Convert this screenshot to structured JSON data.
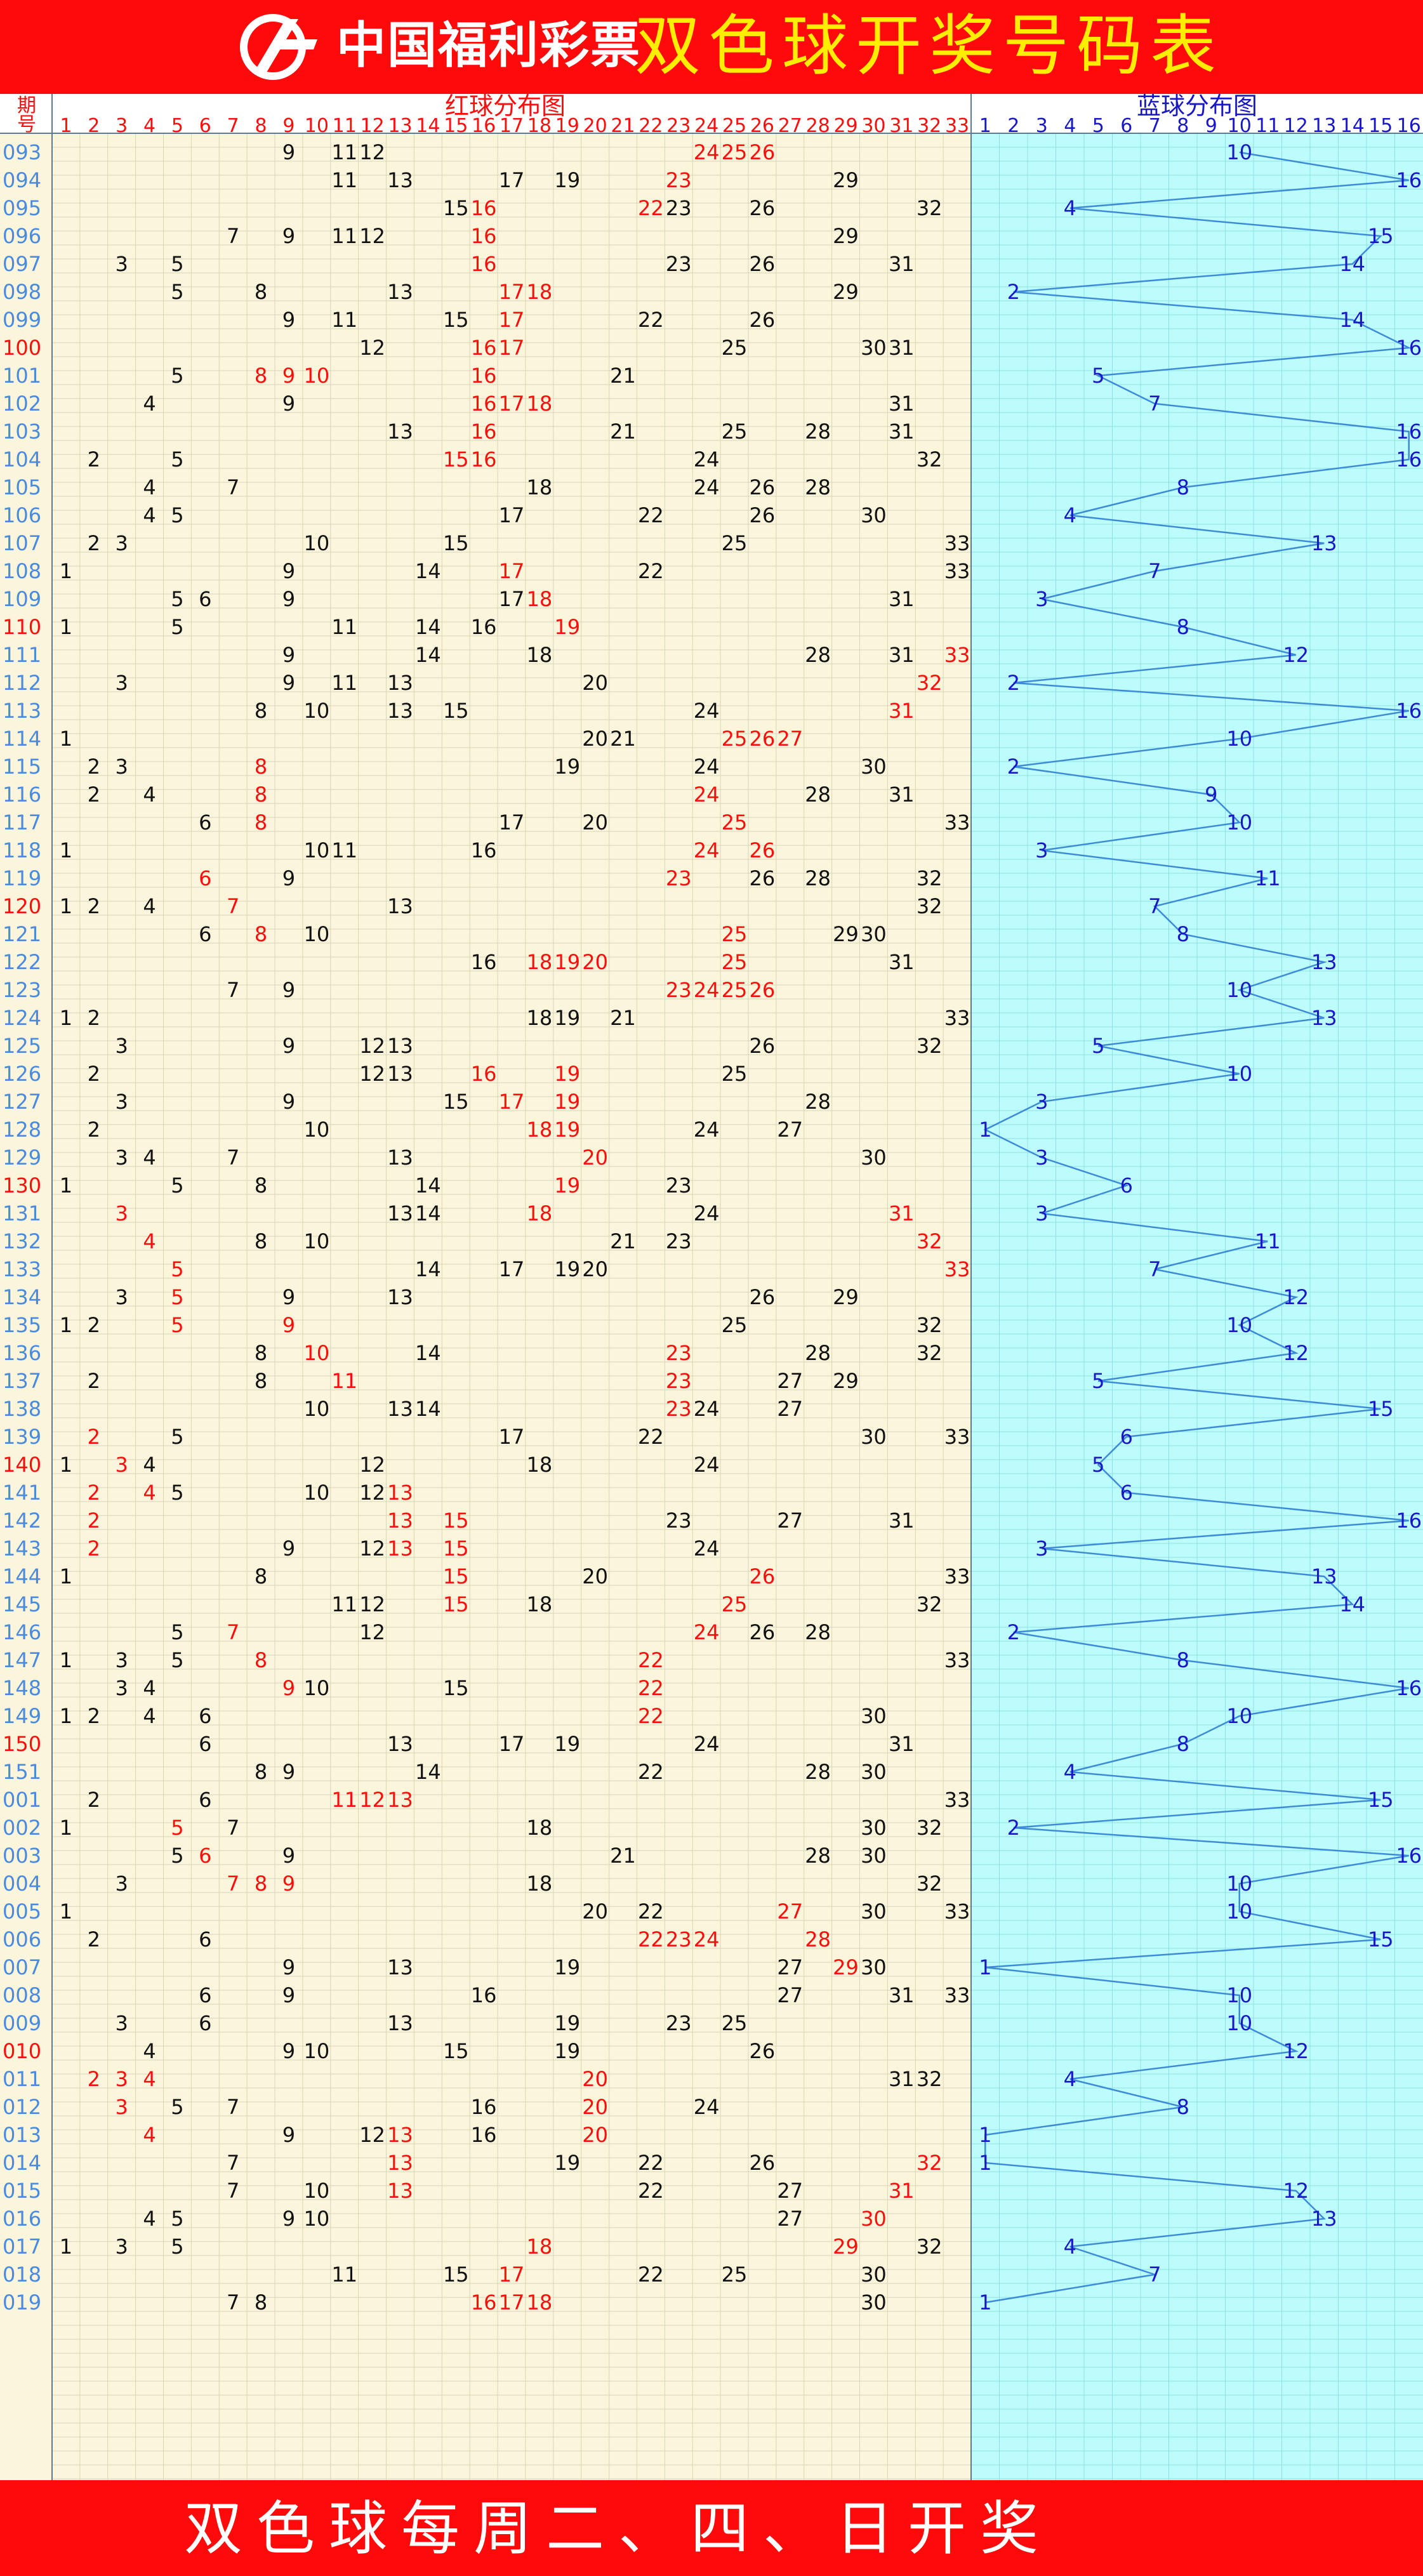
{
  "header": {
    "brand": "中国福利彩票",
    "title": "双色球开奖号码表"
  },
  "table": {
    "period_header": "期号",
    "red_header": "红球分布图",
    "blue_header": "蓝球分布图"
  },
  "footer": {
    "text": "双色球每周二、四、日开奖"
  },
  "colors": {
    "background": "#ff0a0a",
    "red_area": "#fbf5dc",
    "blue_area": "#bdfcfd",
    "red_number": "#ff0d0d",
    "black_number": "#111111",
    "blue_number": "#1818c8",
    "period": "#4a8ae0",
    "grid": "#d6d6b8",
    "blue_line": "#3c8ad8"
  },
  "draws": [
    {
      "p": "093",
      "r": [
        9,
        11,
        12,
        24,
        25,
        26
      ],
      "rr": [
        24,
        25,
        26
      ],
      "b": 10
    },
    {
      "p": "094",
      "r": [
        11,
        13,
        17,
        19,
        23,
        29
      ],
      "rr": [
        23
      ],
      "b": 16
    },
    {
      "p": "095",
      "r": [
        15,
        16,
        22,
        23,
        26,
        32
      ],
      "rr": [
        16,
        22
      ],
      "b": 4
    },
    {
      "p": "096",
      "r": [
        7,
        9,
        11,
        12,
        16,
        29
      ],
      "rr": [
        16
      ],
      "b": 15
    },
    {
      "p": "097",
      "r": [
        3,
        5,
        16,
        23,
        26,
        31
      ],
      "rr": [
        16
      ],
      "b": 14
    },
    {
      "p": "098",
      "r": [
        5,
        8,
        13,
        17,
        18,
        29
      ],
      "rr": [
        17,
        18
      ],
      "b": 2
    },
    {
      "p": "099",
      "r": [
        9,
        11,
        15,
        17,
        22,
        26
      ],
      "rr": [
        17
      ],
      "b": 14
    },
    {
      "p": "100",
      "r": [
        12,
        16,
        17,
        25,
        30,
        31
      ],
      "rr": [
        16,
        17
      ],
      "b": 16
    },
    {
      "p": "101",
      "r": [
        5,
        8,
        9,
        10,
        16,
        21
      ],
      "rr": [
        8,
        9,
        10,
        16
      ],
      "b": 5
    },
    {
      "p": "102",
      "r": [
        4,
        9,
        16,
        17,
        18,
        31
      ],
      "rr": [
        16,
        17,
        18
      ],
      "b": 7
    },
    {
      "p": "103",
      "r": [
        13,
        16,
        21,
        25,
        28,
        31
      ],
      "rr": [
        16
      ],
      "b": 16
    },
    {
      "p": "104",
      "r": [
        2,
        5,
        15,
        16,
        24,
        32
      ],
      "rr": [
        15,
        16
      ],
      "b": 16
    },
    {
      "p": "105",
      "r": [
        4,
        7,
        18,
        24,
        26,
        28
      ],
      "rr": [],
      "b": 8
    },
    {
      "p": "106",
      "r": [
        4,
        5,
        17,
        22,
        26,
        30
      ],
      "rr": [],
      "b": 4
    },
    {
      "p": "107",
      "r": [
        2,
        3,
        10,
        15,
        25,
        33
      ],
      "rr": [],
      "b": 13
    },
    {
      "p": "108",
      "r": [
        1,
        9,
        14,
        17,
        22,
        33
      ],
      "rr": [
        17
      ],
      "b": 7
    },
    {
      "p": "109",
      "r": [
        5,
        6,
        9,
        17,
        18,
        31
      ],
      "rr": [
        18
      ],
      "b": 3
    },
    {
      "p": "110",
      "r": [
        1,
        5,
        11,
        14,
        16,
        19
      ],
      "rr": [
        19
      ],
      "b": 8
    },
    {
      "p": "111",
      "r": [
        9,
        14,
        18,
        28,
        31,
        33
      ],
      "rr": [
        33
      ],
      "b": 12
    },
    {
      "p": "112",
      "r": [
        3,
        9,
        11,
        13,
        20,
        32
      ],
      "rr": [
        32
      ],
      "b": 2
    },
    {
      "p": "113",
      "r": [
        8,
        10,
        13,
        15,
        24,
        31
      ],
      "rr": [
        31
      ],
      "b": 16
    },
    {
      "p": "114",
      "r": [
        1,
        20,
        21,
        25,
        26,
        27
      ],
      "rr": [
        25,
        26,
        27
      ],
      "b": 10
    },
    {
      "p": "115",
      "r": [
        2,
        3,
        8,
        19,
        24,
        30
      ],
      "rr": [
        8
      ],
      "b": 2
    },
    {
      "p": "116",
      "r": [
        2,
        4,
        8,
        24,
        28,
        31
      ],
      "rr": [
        8,
        24
      ],
      "b": 9
    },
    {
      "p": "117",
      "r": [
        6,
        8,
        17,
        20,
        25,
        33
      ],
      "rr": [
        8,
        25
      ],
      "b": 10
    },
    {
      "p": "118",
      "r": [
        1,
        10,
        11,
        16,
        24,
        26
      ],
      "rr": [
        24,
        26
      ],
      "b": 3
    },
    {
      "p": "119",
      "r": [
        6,
        9,
        23,
        26,
        28,
        32
      ],
      "rr": [
        6,
        23
      ],
      "b": 11
    },
    {
      "p": "120",
      "r": [
        1,
        2,
        4,
        7,
        13,
        32
      ],
      "rr": [
        7
      ],
      "b": 7
    },
    {
      "p": "121",
      "r": [
        6,
        8,
        10,
        25,
        29,
        30
      ],
      "rr": [
        8,
        25
      ],
      "b": 8
    },
    {
      "p": "122",
      "r": [
        16,
        18,
        19,
        20,
        25,
        31
      ],
      "rr": [
        18,
        19,
        20,
        25
      ],
      "b": 13
    },
    {
      "p": "123",
      "r": [
        7,
        9,
        23,
        24,
        25,
        26
      ],
      "rr": [
        23,
        24,
        25,
        26
      ],
      "b": 10
    },
    {
      "p": "124",
      "r": [
        1,
        2,
        18,
        19,
        21,
        33
      ],
      "rr": [],
      "b": 13
    },
    {
      "p": "125",
      "r": [
        3,
        9,
        12,
        13,
        26,
        32
      ],
      "rr": [],
      "b": 5
    },
    {
      "p": "126",
      "r": [
        2,
        12,
        13,
        16,
        19,
        25
      ],
      "rr": [
        16,
        19
      ],
      "b": 10
    },
    {
      "p": "127",
      "r": [
        3,
        9,
        15,
        17,
        19,
        28
      ],
      "rr": [
        17,
        19
      ],
      "b": 3
    },
    {
      "p": "128",
      "r": [
        2,
        10,
        18,
        19,
        24,
        27
      ],
      "rr": [
        18,
        19
      ],
      "b": 1
    },
    {
      "p": "129",
      "r": [
        3,
        4,
        7,
        13,
        20,
        30
      ],
      "rr": [
        20
      ],
      "b": 3
    },
    {
      "p": "130",
      "r": [
        1,
        5,
        8,
        14,
        19,
        23
      ],
      "rr": [
        19
      ],
      "b": 6
    },
    {
      "p": "131",
      "r": [
        3,
        13,
        14,
        18,
        24,
        31
      ],
      "rr": [
        3,
        18,
        31
      ],
      "b": 3
    },
    {
      "p": "132",
      "r": [
        4,
        8,
        10,
        21,
        23,
        32
      ],
      "rr": [
        4,
        32
      ],
      "b": 11
    },
    {
      "p": "133",
      "r": [
        5,
        14,
        17,
        19,
        20,
        33
      ],
      "rr": [
        5,
        33
      ],
      "b": 7
    },
    {
      "p": "134",
      "r": [
        3,
        5,
        9,
        13,
        26,
        29
      ],
      "rr": [
        5
      ],
      "b": 12
    },
    {
      "p": "135",
      "r": [
        1,
        2,
        5,
        9,
        25,
        32
      ],
      "rr": [
        5,
        9
      ],
      "b": 10
    },
    {
      "p": "136",
      "r": [
        8,
        10,
        14,
        23,
        28,
        32
      ],
      "rr": [
        10,
        23
      ],
      "b": 12
    },
    {
      "p": "137",
      "r": [
        2,
        8,
        11,
        23,
        27,
        29
      ],
      "rr": [
        11,
        23
      ],
      "b": 5
    },
    {
      "p": "138",
      "r": [
        10,
        13,
        14,
        23,
        24,
        27
      ],
      "rr": [
        23
      ],
      "b": 15
    },
    {
      "p": "139",
      "r": [
        2,
        5,
        17,
        22,
        30,
        33
      ],
      "rr": [
        2
      ],
      "b": 6
    },
    {
      "p": "140",
      "r": [
        1,
        3,
        4,
        12,
        18,
        24
      ],
      "rr": [
        3
      ],
      "b": 5
    },
    {
      "p": "141",
      "r": [
        2,
        4,
        5,
        10,
        12,
        13
      ],
      "rr": [
        2,
        4,
        13
      ],
      "b": 6
    },
    {
      "p": "142",
      "r": [
        2,
        13,
        15,
        23,
        27,
        31
      ],
      "rr": [
        2,
        13,
        15
      ],
      "b": 16
    },
    {
      "p": "143",
      "r": [
        2,
        9,
        12,
        13,
        15,
        24
      ],
      "rr": [
        2,
        13,
        15
      ],
      "b": 3
    },
    {
      "p": "144",
      "r": [
        1,
        8,
        15,
        20,
        26,
        33
      ],
      "rr": [
        15,
        26
      ],
      "b": 13
    },
    {
      "p": "145",
      "r": [
        11,
        12,
        15,
        18,
        25,
        32
      ],
      "rr": [
        15,
        25
      ],
      "b": 14
    },
    {
      "p": "146",
      "r": [
        5,
        7,
        12,
        24,
        26,
        28
      ],
      "rr": [
        7,
        24
      ],
      "b": 2
    },
    {
      "p": "147",
      "r": [
        1,
        3,
        5,
        8,
        22,
        33
      ],
      "rr": [
        8,
        22
      ],
      "b": 8
    },
    {
      "p": "148",
      "r": [
        3,
        4,
        9,
        10,
        15,
        22
      ],
      "rr": [
        9,
        22
      ],
      "b": 16
    },
    {
      "p": "149",
      "r": [
        1,
        2,
        4,
        6,
        22,
        30
      ],
      "rr": [
        22
      ],
      "b": 10
    },
    {
      "p": "150",
      "r": [
        6,
        13,
        17,
        19,
        24,
        31
      ],
      "rr": [],
      "b": 8
    },
    {
      "p": "151",
      "r": [
        8,
        9,
        14,
        22,
        28,
        30
      ],
      "rr": [],
      "b": 4
    },
    {
      "p": "001",
      "r": [
        2,
        6,
        11,
        12,
        13,
        33
      ],
      "rr": [
        11,
        12,
        13
      ],
      "b": 15
    },
    {
      "p": "002",
      "r": [
        1,
        5,
        7,
        18,
        30,
        32
      ],
      "rr": [
        5
      ],
      "b": 2
    },
    {
      "p": "003",
      "r": [
        5,
        6,
        9,
        21,
        28,
        30
      ],
      "rr": [
        6
      ],
      "b": 16
    },
    {
      "p": "004",
      "r": [
        3,
        7,
        8,
        9,
        18,
        32
      ],
      "rr": [
        7,
        8,
        9
      ],
      "b": 10
    },
    {
      "p": "005",
      "r": [
        1,
        20,
        22,
        27,
        30,
        33
      ],
      "rr": [
        27
      ],
      "b": 10
    },
    {
      "p": "006",
      "r": [
        2,
        6,
        22,
        23,
        24,
        28
      ],
      "rr": [
        22,
        23,
        24,
        28
      ],
      "b": 15
    },
    {
      "p": "007",
      "r": [
        9,
        13,
        19,
        27,
        29,
        30
      ],
      "rr": [
        29
      ],
      "b": 1
    },
    {
      "p": "008",
      "r": [
        6,
        9,
        16,
        27,
        31,
        33
      ],
      "rr": [],
      "b": 10
    },
    {
      "p": "009",
      "r": [
        3,
        6,
        13,
        19,
        23,
        25
      ],
      "rr": [],
      "b": 10
    },
    {
      "p": "010",
      "r": [
        4,
        9,
        10,
        15,
        19,
        26
      ],
      "rr": [],
      "b": 12
    },
    {
      "p": "011",
      "r": [
        2,
        3,
        4,
        20,
        31,
        32
      ],
      "rr": [
        2,
        3,
        4,
        20
      ],
      "b": 4
    },
    {
      "p": "012",
      "r": [
        3,
        5,
        7,
        16,
        20,
        24
      ],
      "rr": [
        3,
        20
      ],
      "b": 8
    },
    {
      "p": "013",
      "r": [
        4,
        9,
        12,
        13,
        16,
        20
      ],
      "rr": [
        4,
        13,
        20
      ],
      "b": 1
    },
    {
      "p": "014",
      "r": [
        7,
        13,
        19,
        22,
        26,
        32
      ],
      "rr": [
        13,
        32
      ],
      "b": 1
    },
    {
      "p": "015",
      "r": [
        7,
        10,
        13,
        22,
        27,
        31
      ],
      "rr": [
        13,
        31
      ],
      "b": 12
    },
    {
      "p": "016",
      "r": [
        4,
        5,
        9,
        10,
        27,
        30
      ],
      "rr": [
        30
      ],
      "b": 13
    },
    {
      "p": "017",
      "r": [
        1,
        3,
        5,
        18,
        29,
        32
      ],
      "rr": [
        18,
        29
      ],
      "b": 4
    },
    {
      "p": "018",
      "r": [
        11,
        15,
        17,
        22,
        25,
        30
      ],
      "rr": [
        17
      ],
      "b": 7
    },
    {
      "p": "019",
      "r": [
        7,
        8,
        16,
        17,
        18,
        30
      ],
      "rr": [
        16,
        17,
        18
      ],
      "b": 1
    }
  ]
}
